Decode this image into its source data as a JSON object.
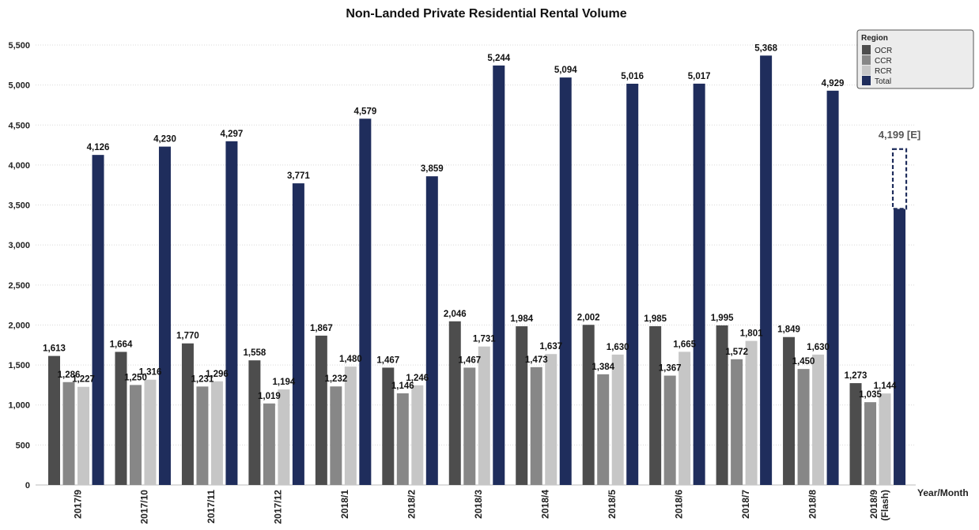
{
  "chart_data": {
    "type": "bar",
    "title": "Non-Landed Private Residential Rental Volume",
    "xlabel": "Year/Month",
    "ylabel": "",
    "ylim": [
      0,
      5500
    ],
    "yticks": [
      0,
      500,
      1000,
      1500,
      2000,
      2500,
      3000,
      3500,
      4000,
      4500,
      5000,
      5500
    ],
    "ytick_labels": [
      "0",
      "500",
      "1,000",
      "1,500",
      "2,000",
      "2,500",
      "3,000",
      "3,500",
      "4,000",
      "4,500",
      "5,000",
      "5,500"
    ],
    "grid": true,
    "categories": [
      "2017/9",
      "2017/10",
      "2017/11",
      "2017/12",
      "2018/1",
      "2018/2",
      "2018/3",
      "2018/4",
      "2018/5",
      "2018/6",
      "2018/7",
      "2018/8",
      "2018/9 (Flash)"
    ],
    "series": [
      {
        "name": "OCR",
        "color": "#4d4d4d",
        "values": [
          1613,
          1664,
          1770,
          1558,
          1867,
          1467,
          2046,
          1984,
          2002,
          1985,
          1995,
          1849,
          1273
        ],
        "labels": [
          "1,613",
          "1,664",
          "1,770",
          "1,558",
          "1,867",
          "1,467",
          "2,046",
          "1,984",
          "2,002",
          "1,985",
          "1,995",
          "1,849",
          "1,273"
        ]
      },
      {
        "name": "CCR",
        "color": "#878787",
        "values": [
          1286,
          1250,
          1231,
          1019,
          1232,
          1146,
          1467,
          1473,
          1384,
          1367,
          1572,
          1450,
          1035
        ],
        "labels": [
          "1,286",
          "1,250",
          "1,231",
          "1,019",
          "1,232",
          "1,146",
          "1,467",
          "1,473",
          "1,384",
          "1,367",
          "1,572",
          "1,450",
          "1,035"
        ]
      },
      {
        "name": "RCR",
        "color": "#c6c6c6",
        "values": [
          1227,
          1316,
          1296,
          1194,
          1480,
          1246,
          1731,
          1637,
          1630,
          1665,
          1801,
          1630,
          1144
        ],
        "labels": [
          "1,227",
          "1,316",
          "1,296",
          "1,194",
          "1,480",
          "1,246",
          "1,731",
          "1,637",
          "1,630",
          "1,665",
          "1,801",
          "1,630",
          "1,144"
        ]
      },
      {
        "name": "Total",
        "color": "#1f2d5c",
        "values": [
          4126,
          4230,
          4297,
          3771,
          4579,
          3859,
          5244,
          5094,
          5016,
          5017,
          5368,
          4929,
          3452
        ],
        "labels": [
          "4,126",
          "4,230",
          "4,297",
          "3,771",
          "4,579",
          "3,859",
          "5,244",
          "5,094",
          "5,016",
          "5,017",
          "5,368",
          "4,929",
          ""
        ]
      }
    ],
    "estimate": {
      "category_index": 12,
      "value": 4199,
      "label": "4,199 [E]"
    },
    "legend": {
      "title": "Region",
      "position": "top-right",
      "entries": [
        "OCR",
        "CCR",
        "RCR",
        "Total"
      ]
    }
  }
}
